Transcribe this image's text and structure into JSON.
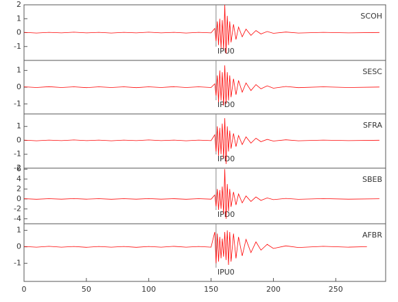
{
  "chart_data": [
    {
      "type": "line",
      "name": "SCOH",
      "pick": {
        "label": "IPU0",
        "x": 154
      },
      "color": "#ff0000",
      "xlim": [
        0,
        290
      ],
      "ylim": [
        -2,
        2
      ],
      "yticks": [
        -1,
        0,
        1,
        2
      ],
      "x": [
        0,
        10,
        20,
        30,
        40,
        50,
        60,
        70,
        80,
        90,
        100,
        110,
        120,
        130,
        140,
        150,
        153,
        154,
        155,
        156,
        157,
        158,
        159,
        160,
        161,
        162,
        163,
        164,
        165,
        166,
        168,
        170,
        172,
        175,
        178,
        182,
        186,
        190,
        195,
        200,
        210,
        220,
        240,
        260,
        285
      ],
      "values": [
        0.02,
        -0.03,
        0.02,
        -0.02,
        0.03,
        -0.02,
        0.02,
        -0.03,
        0.02,
        -0.02,
        0.03,
        -0.02,
        0.02,
        -0.03,
        0.02,
        -0.02,
        0.3,
        -0.6,
        0.8,
        -0.9,
        1.0,
        -1.1,
        0.9,
        -1.2,
        2.0,
        -1.5,
        1.2,
        -0.9,
        0.8,
        -0.7,
        0.6,
        -0.5,
        0.4,
        -0.3,
        0.25,
        -0.2,
        0.15,
        -0.1,
        0.08,
        -0.05,
        0.04,
        -0.03,
        0.02,
        -0.02,
        0.01
      ]
    },
    {
      "type": "line",
      "name": "SESC",
      "pick": {
        "label": "IPD0",
        "x": 154
      },
      "color": "#ff0000",
      "xlim": [
        0,
        290
      ],
      "ylim": [
        -1.6,
        1.6
      ],
      "yticks": [
        -1,
        0,
        1
      ],
      "x": [
        0,
        10,
        20,
        30,
        40,
        50,
        60,
        70,
        80,
        90,
        100,
        110,
        120,
        130,
        140,
        150,
        153,
        154,
        155,
        156,
        157,
        158,
        159,
        160,
        161,
        162,
        163,
        164,
        165,
        166,
        168,
        170,
        172,
        175,
        178,
        182,
        186,
        190,
        195,
        200,
        210,
        220,
        240,
        260,
        285
      ],
      "values": [
        0.02,
        -0.02,
        0.03,
        -0.02,
        0.02,
        -0.03,
        0.02,
        -0.02,
        0.02,
        -0.03,
        0.02,
        -0.02,
        0.03,
        -0.02,
        0.02,
        -0.02,
        0.2,
        -0.5,
        0.7,
        -0.9,
        1.0,
        -0.8,
        0.9,
        -1.1,
        1.3,
        -1.0,
        0.9,
        -0.8,
        0.7,
        -0.6,
        0.5,
        -0.45,
        0.4,
        -0.3,
        0.25,
        -0.2,
        0.15,
        -0.1,
        0.08,
        -0.06,
        0.04,
        -0.03,
        0.02,
        -0.02,
        0.01
      ]
    },
    {
      "type": "line",
      "name": "SFRA",
      "pick": {
        "label": "IPD0",
        "x": 154
      },
      "color": "#ff0000",
      "xlim": [
        0,
        290
      ],
      "ylim": [
        -2,
        1.9
      ],
      "yticks": [
        -2,
        -1,
        0,
        1
      ],
      "x": [
        0,
        10,
        20,
        30,
        40,
        50,
        60,
        70,
        80,
        90,
        100,
        110,
        120,
        130,
        140,
        150,
        153,
        154,
        155,
        156,
        157,
        158,
        159,
        160,
        161,
        162,
        163,
        164,
        165,
        166,
        168,
        170,
        172,
        175,
        178,
        182,
        186,
        190,
        195,
        200,
        210,
        220,
        240,
        260,
        285
      ],
      "values": [
        0.02,
        -0.03,
        0.02,
        -0.02,
        0.03,
        -0.02,
        0.02,
        -0.03,
        0.02,
        -0.02,
        0.03,
        -0.02,
        0.02,
        -0.03,
        0.02,
        -0.02,
        0.4,
        -0.8,
        1.0,
        -1.1,
        0.9,
        -1.0,
        1.2,
        -1.3,
        1.6,
        -1.7,
        1.0,
        -0.8,
        0.7,
        -0.6,
        0.5,
        -0.45,
        0.35,
        -0.3,
        0.25,
        -0.2,
        0.15,
        -0.1,
        0.07,
        -0.05,
        0.04,
        -0.03,
        0.02,
        -0.02,
        0.01
      ]
    },
    {
      "type": "line",
      "name": "SBEB",
      "pick": {
        "label": "IPD0",
        "x": 154
      },
      "color": "#ff0000",
      "xlim": [
        0,
        290
      ],
      "ylim": [
        -5,
        6.2
      ],
      "yticks": [
        -4,
        -2,
        0,
        2,
        4,
        6
      ],
      "x": [
        0,
        10,
        20,
        30,
        40,
        50,
        60,
        70,
        80,
        90,
        100,
        110,
        120,
        130,
        140,
        150,
        153,
        154,
        155,
        156,
        157,
        158,
        159,
        160,
        161,
        162,
        163,
        164,
        165,
        166,
        168,
        170,
        172,
        175,
        178,
        182,
        186,
        190,
        195,
        200,
        210,
        220,
        240,
        260,
        285
      ],
      "values": [
        0.05,
        -0.06,
        0.05,
        -0.05,
        0.06,
        -0.05,
        0.05,
        -0.06,
        0.05,
        -0.05,
        0.06,
        -0.05,
        0.05,
        -0.06,
        0.05,
        -0.05,
        0.8,
        -1.5,
        2.0,
        -2.2,
        1.8,
        -2.0,
        2.5,
        -3.0,
        6.0,
        -4.0,
        3.0,
        -2.5,
        2.0,
        -1.6,
        1.4,
        -1.2,
        1.0,
        -0.8,
        0.6,
        -0.5,
        0.4,
        -0.3,
        0.2,
        -0.15,
        0.1,
        -0.08,
        0.06,
        -0.05,
        0.04
      ]
    },
    {
      "type": "line",
      "name": "AFBR",
      "pick": {
        "label": "IPU0",
        "x": 154
      },
      "color": "#ff0000",
      "xlim": [
        0,
        290
      ],
      "ylim": [
        -2.1,
        1.4
      ],
      "yticks": [
        -1,
        0,
        1
      ],
      "xticks": [
        0,
        50,
        100,
        150,
        200,
        250
      ],
      "x": [
        0,
        10,
        20,
        30,
        40,
        50,
        60,
        70,
        80,
        90,
        100,
        110,
        120,
        130,
        140,
        150,
        153,
        154,
        155,
        156,
        157,
        158,
        159,
        160,
        161,
        162,
        163,
        164,
        165,
        166,
        168,
        170,
        172,
        175,
        178,
        182,
        186,
        190,
        195,
        200,
        210,
        220,
        240,
        260,
        275
      ],
      "values": [
        0.02,
        -0.02,
        0.03,
        -0.02,
        0.02,
        -0.03,
        0.02,
        -0.02,
        0.02,
        -0.03,
        0.02,
        -0.02,
        0.03,
        -0.02,
        0.02,
        -0.02,
        0.9,
        -1.0,
        0.8,
        -0.9,
        0.6,
        -0.7,
        0.5,
        -0.6,
        0.9,
        -0.8,
        1.0,
        -1.1,
        0.9,
        -0.9,
        0.8,
        -0.7,
        0.6,
        -0.55,
        0.45,
        -0.35,
        0.3,
        -0.2,
        0.15,
        -0.1,
        0.06,
        -0.04,
        0.03,
        -0.02,
        0.01
      ]
    }
  ]
}
